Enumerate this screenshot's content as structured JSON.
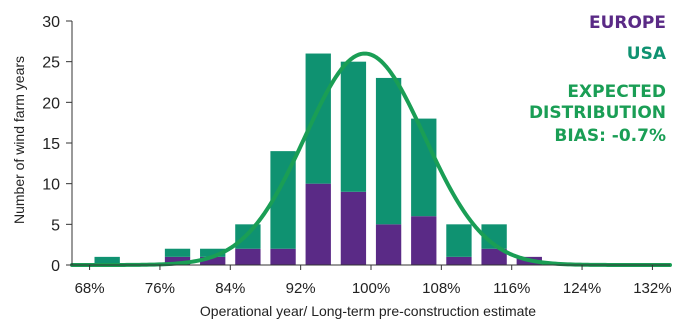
{
  "chart_data": {
    "type": "bar",
    "stacked": true,
    "xlabel": "Operational year/ Long-term pre-construction estimate",
    "ylabel": "Number of wind farm years",
    "ylim": [
      0,
      30
    ],
    "yticks": [
      0,
      5,
      10,
      15,
      20,
      25,
      30
    ],
    "xlim": [
      0.66,
      1.34
    ],
    "xticks": [
      {
        "value": 0.68,
        "label": "68%"
      },
      {
        "value": 0.76,
        "label": "76%"
      },
      {
        "value": 0.84,
        "label": "84%"
      },
      {
        "value": 0.92,
        "label": "92%"
      },
      {
        "value": 1.0,
        "label": "100%"
      },
      {
        "value": 1.08,
        "label": "108%"
      },
      {
        "value": 1.16,
        "label": "116%"
      },
      {
        "value": 1.24,
        "label": "124%"
      },
      {
        "value": 1.32,
        "label": "132%"
      }
    ],
    "bin_width": 0.04,
    "bins": [
      0.66,
      0.7,
      0.74,
      0.78,
      0.82,
      0.86,
      0.9,
      0.94,
      0.98,
      1.02,
      1.06,
      1.1,
      1.14,
      1.18,
      1.22,
      1.26,
      1.3
    ],
    "series": [
      {
        "name": "EUROPE",
        "color": "#5a2a86",
        "values": [
          0,
          0,
          0,
          1,
          1,
          2,
          2,
          10,
          9,
          5,
          6,
          1,
          2,
          1,
          0,
          0,
          0
        ]
      },
      {
        "name": "USA",
        "color": "#0f9271",
        "values": [
          0,
          1,
          0,
          1,
          1,
          3,
          12,
          16,
          16,
          18,
          12,
          4,
          3,
          0,
          0,
          0,
          0
        ]
      }
    ],
    "expected_distribution": {
      "name": "EXPECTED DISTRIBUTION",
      "color": "#1a9e55",
      "mean": 0.993,
      "stdev": 0.068,
      "peak": 26
    },
    "bias_label": "BIAS: -0.7%",
    "legend_position": "top-right",
    "grid": false
  }
}
